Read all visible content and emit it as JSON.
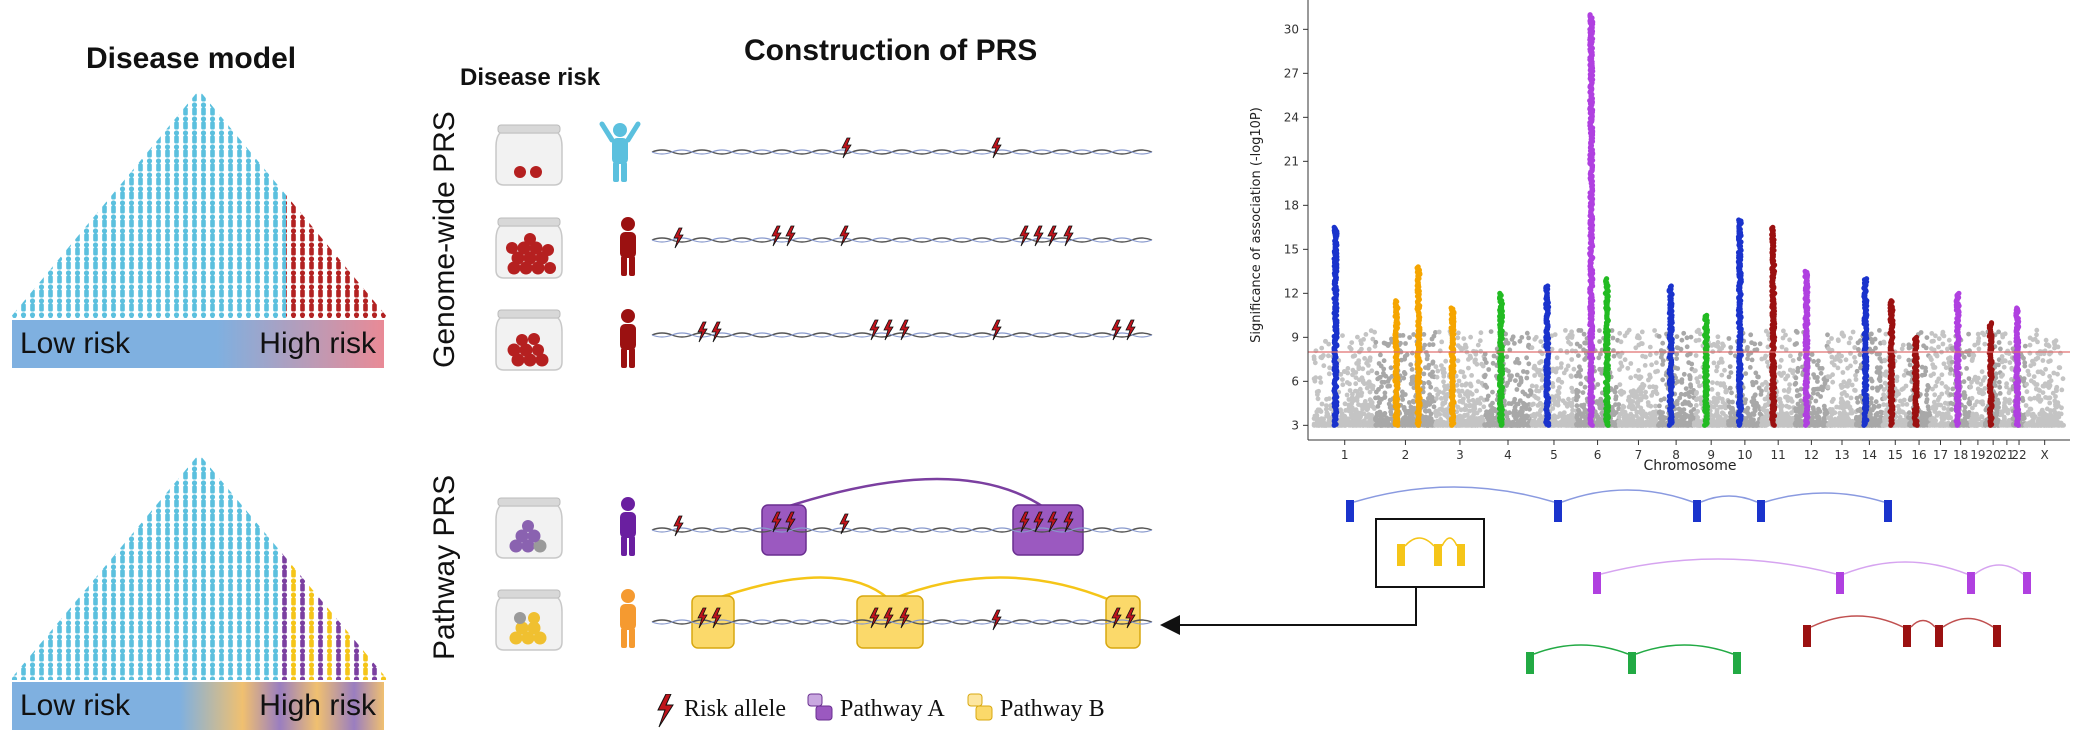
{
  "disease_model": {
    "title": "Disease model",
    "low_label": "Low risk",
    "high_label": "High risk"
  },
  "prs": {
    "title": "Construction of PRS",
    "disease_risk_label": "Disease risk",
    "genome_wide_label": "Genome-wide PRS",
    "pathway_label": "Pathway PRS"
  },
  "legend": {
    "risk_allele": "Risk allele",
    "pathway_a": "Pathway A",
    "pathway_b": "Pathway B"
  },
  "colors": {
    "healthy": "#5BC0DE",
    "risk": "#B22222",
    "pathway_a": "#7B3FA0",
    "pathway_b": "#F5C518",
    "threshold": "#E07070"
  },
  "chart_data": {
    "type": "scatter",
    "title": "",
    "xlabel": "Chromosome",
    "ylabel": "Significance of association (-log10P)",
    "ylim": [
      2,
      32
    ],
    "yticks": [
      "3",
      "6",
      "9",
      "12",
      "15",
      "18",
      "21",
      "24",
      "27",
      "30"
    ],
    "xticks": [
      "1",
      "2",
      "3",
      "4",
      "5",
      "6",
      "7",
      "8",
      "9",
      "10",
      "11",
      "12",
      "13",
      "14",
      "15",
      "16",
      "17",
      "18",
      "19",
      "20",
      "21",
      "22",
      "X"
    ],
    "threshold": 8,
    "highlighted_loci": [
      {
        "chromosome": 1,
        "peak": 16.5,
        "color": "#1a33cc"
      },
      {
        "chromosome": 2,
        "peak": 11.5,
        "color": "#f5a500"
      },
      {
        "chromosome": 2,
        "peak": 13.8,
        "color": "#f5a500"
      },
      {
        "chromosome": 3,
        "peak": 11.0,
        "color": "#f5a500"
      },
      {
        "chromosome": 4,
        "peak": 12.0,
        "color": "#22bb22"
      },
      {
        "chromosome": 5,
        "peak": 12.5,
        "color": "#1a33cc"
      },
      {
        "chromosome": 6,
        "peak": 31.0,
        "color": "#b040e0"
      },
      {
        "chromosome": 6,
        "peak": 13.0,
        "color": "#22bb22"
      },
      {
        "chromosome": 8,
        "peak": 12.5,
        "color": "#1a33cc"
      },
      {
        "chromosome": 9,
        "peak": 10.5,
        "color": "#22bb22"
      },
      {
        "chromosome": 10,
        "peak": 17.0,
        "color": "#1a33cc"
      },
      {
        "chromosome": 11,
        "peak": 16.5,
        "color": "#9b1111"
      },
      {
        "chromosome": 12,
        "peak": 13.5,
        "color": "#b040e0"
      },
      {
        "chromosome": 14,
        "peak": 13.0,
        "color": "#1a33cc"
      },
      {
        "chromosome": 15,
        "peak": 11.5,
        "color": "#9b1111"
      },
      {
        "chromosome": 16,
        "peak": 9.0,
        "color": "#9b1111"
      },
      {
        "chromosome": 18,
        "peak": 12.0,
        "color": "#b040e0"
      },
      {
        "chromosome": 20,
        "peak": 10.0,
        "color": "#9b1111"
      },
      {
        "chromosome": 22,
        "peak": 11.0,
        "color": "#b040e0"
      }
    ]
  }
}
